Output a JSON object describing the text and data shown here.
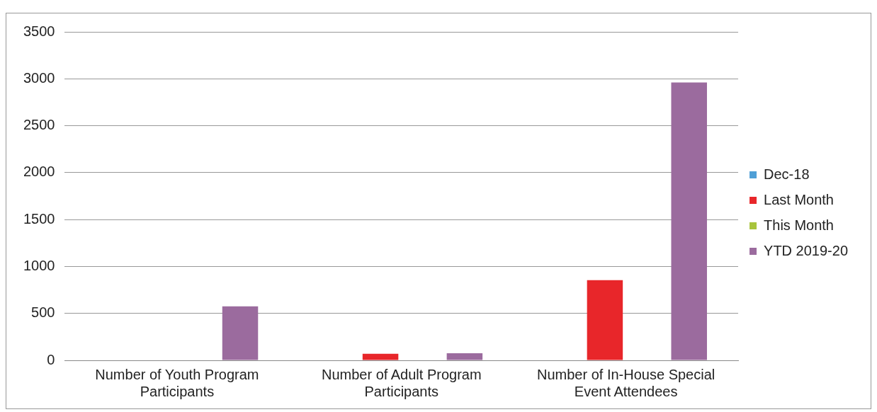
{
  "chart_data": {
    "type": "bar",
    "categories": [
      "Number of Youth Program Participants",
      "Number of Adult Program Participants",
      "Number of In-House Special Event Attendees"
    ],
    "series": [
      {
        "name": "Dec-18",
        "color": "#4f9fd6",
        "values": [
          0,
          0,
          0
        ]
      },
      {
        "name": "Last Month",
        "color": "#e8262a",
        "values": [
          0,
          70,
          855
        ]
      },
      {
        "name": "This Month",
        "color": "#a8c43c",
        "values": [
          0,
          0,
          0
        ]
      },
      {
        "name": "YTD 2019-20",
        "color": "#9b6b9e",
        "values": [
          575,
          75,
          2960
        ]
      }
    ],
    "ylim": [
      0,
      3500
    ],
    "yticks": [
      0,
      500,
      1000,
      1500,
      2000,
      2500,
      3000,
      3500
    ],
    "grid": "y",
    "legend": "right"
  }
}
